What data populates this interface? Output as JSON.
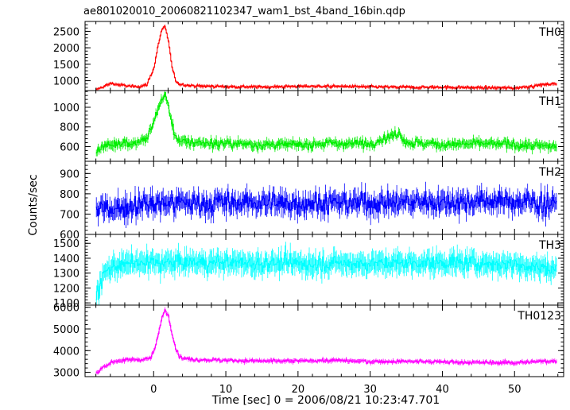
{
  "chart_data": {
    "type": "line",
    "title": "ae801020010_20060821102347_wam1_bst_4band_16bin.qdp",
    "xlabel": "Time [sec] 0 = 2006/08/21 10:23:47.701",
    "ylabel": "Counts/sec",
    "xlim": [
      -9.5,
      56.8
    ],
    "x_ticks": [
      0,
      10,
      20,
      30,
      40,
      50
    ],
    "grid": false,
    "error_bars": true,
    "panels": [
      {
        "name": "TH0",
        "color": "#ff0000",
        "ylim": [
          700,
          2800
        ],
        "yticks": [
          1000,
          1500,
          2000,
          2500
        ],
        "baseline": 820,
        "noise": 40,
        "err": 45,
        "x": [
          -8,
          -7,
          -6,
          -5,
          -4,
          -3,
          -2,
          -1,
          0,
          0.5,
          1,
          1.5,
          2,
          2.5,
          3,
          3.5,
          4,
          5,
          6,
          8,
          10,
          15,
          20,
          25,
          30,
          35,
          40,
          45,
          50,
          55
        ],
        "values": [
          720,
          820,
          920,
          880,
          850,
          820,
          830,
          880,
          1400,
          2000,
          2500,
          2650,
          2200,
          1400,
          1000,
          900,
          880,
          850,
          840,
          830,
          820,
          810,
          830,
          830,
          810,
          800,
          800,
          790,
          780,
          900
        ]
      },
      {
        "name": "TH1",
        "color": "#00ee00",
        "ylim": [
          450,
          1170
        ],
        "yticks": [
          600,
          800,
          1000
        ],
        "baseline": 630,
        "noise": 45,
        "err": 45,
        "x": [
          -8,
          -7,
          -6,
          -5,
          -4,
          -3,
          -2,
          -1,
          0,
          0.5,
          1,
          1.5,
          2,
          2.5,
          3,
          3.5,
          4,
          6,
          10,
          15,
          20,
          25,
          30,
          34,
          35,
          40,
          45,
          50,
          55
        ],
        "values": [
          560,
          600,
          620,
          640,
          640,
          630,
          650,
          680,
          850,
          980,
          1070,
          1130,
          1000,
          820,
          700,
          660,
          650,
          640,
          630,
          620,
          620,
          630,
          630,
          740,
          640,
          620,
          630,
          620,
          600
        ]
      },
      {
        "name": "TH2",
        "color": "#0000ff",
        "ylim": [
          600,
          960
        ],
        "yticks": [
          600,
          700,
          800,
          900
        ],
        "baseline": 755,
        "noise": 55,
        "err": 48,
        "x": [
          -8,
          0,
          10,
          20,
          30,
          40,
          50,
          55
        ],
        "values": [
          720,
          755,
          755,
          755,
          755,
          760,
          760,
          750
        ]
      },
      {
        "name": "TH3",
        "color": "#00ffff",
        "ylim": [
          1085,
          1560
        ],
        "yticks": [
          1100,
          1200,
          1300,
          1400,
          1500
        ],
        "baseline": 1365,
        "noise": 55,
        "err": 70,
        "x": [
          -8,
          -7,
          -6,
          -5,
          0,
          10,
          20,
          30,
          40,
          50,
          55
        ],
        "values": [
          1150,
          1280,
          1340,
          1360,
          1370,
          1370,
          1365,
          1365,
          1370,
          1360,
          1330
        ]
      },
      {
        "name": "TH0123",
        "color": "#ff00ff",
        "ylim": [
          2800,
          6100
        ],
        "yticks": [
          3000,
          4000,
          5000,
          6000
        ],
        "baseline": 3520,
        "noise": 80,
        "err": 90,
        "x": [
          -8,
          -7,
          -6,
          -5,
          -4,
          -3,
          -2,
          -1,
          -0.5,
          0,
          0.5,
          1,
          1.5,
          2,
          2.5,
          3,
          3.5,
          4,
          5,
          6,
          10,
          15,
          20,
          25,
          30,
          35,
          40,
          45,
          50,
          55
        ],
        "values": [
          2950,
          3250,
          3450,
          3550,
          3550,
          3600,
          3580,
          3620,
          3650,
          4000,
          4600,
          5400,
          5900,
          5600,
          4800,
          4100,
          3750,
          3650,
          3600,
          3580,
          3550,
          3520,
          3520,
          3550,
          3500,
          3500,
          3480,
          3450,
          3450,
          3520
        ]
      }
    ]
  }
}
